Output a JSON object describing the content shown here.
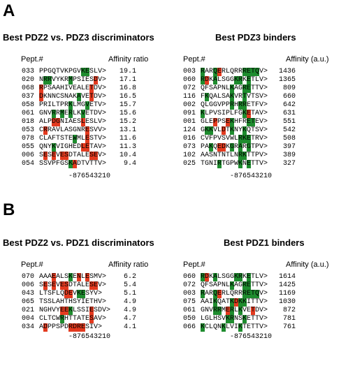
{
  "panel_a": {
    "letter": "A",
    "left": {
      "title": "Best PDZ2 vs. PDZ3 discriminators",
      "col_pept": "Pept.#",
      "col_val": "Affinity ratio",
      "positions": "-876543210",
      "rows": [
        {
          "id": "033",
          "seq": "PPGQTVKPGVKESLV>",
          "hl": "..........gg....",
          "val": "19.1"
        },
        {
          "id": "020",
          "seq": "NRRVYKRMPSIESDV>",
          "hl": ".gg....g.....r..",
          "val": "17.1"
        },
        {
          "id": "068",
          "seq": "RPSAAHIVEALETDV>",
          "hl": "r...........r...",
          "val": "16.8"
        },
        {
          "id": "037",
          "seq": "DKNNCSNAKAVETDV>",
          "hl": "r........g..r...",
          "val": "16.5"
        },
        {
          "id": "058",
          "seq": "PRILTPRKLMGVETV>",
          "hl": ".......g...g....",
          "val": "15.7"
        },
        {
          "id": "061",
          "seq": "GNVRRMERLKVETDV>",
          "hl": "...g.g.g..g.....",
          "val": "15.6"
        },
        {
          "id": "018",
          "seq": "ALPDGNIAESLESLV>",
          "hl": "...rr.....r.....",
          "val": "15.2"
        },
        {
          "id": "053",
          "seq": "CRRAVLASGNRESVV>",
          "hl": ".r.........r....",
          "val": "13.1"
        },
        {
          "id": "078",
          "seq": "CLAFTSTEWMLESTV>",
          "hl": "........g..r....",
          "val": "11.6"
        },
        {
          "id": "055",
          "qseq": "",
          "seq": "QNYKVIGHEDLETAV>",
          "hl": "...g......rr....",
          "val": "11.3"
        },
        {
          "id": "006",
          "seq": "SESEVESDTALESEV>",
          "hl": ".r.r.rr.....rr..",
          "val": "10.4"
        },
        {
          "id": "054",
          "seq": "SSVPFGSKADTVTTV>",
          "hl": ".......gr.......",
          "val": "9.4"
        }
      ]
    },
    "right": {
      "title": "Best PDZ3 binders",
      "col_pept": "Pept.#",
      "col_val": "Affinity (a.u.)",
      "positions": "-876543210",
      "rows": [
        {
          "id": "003",
          "seq": "RARQERLQRRRETQV>",
          "hl": "g..gr.....gggg..",
          "val": "1436"
        },
        {
          "id": "060",
          "seq": "RDKALSGGKRKETLV>",
          "hl": "gr.g....gg.g....",
          "val": "1365"
        },
        {
          "id": "072",
          "seq": "QFSAPNLKAGRETTV>",
          "hl": ".......g..gg....",
          "val": "809"
        },
        {
          "id": "116",
          "seq": "FKQALSAKVRTVTSV>",
          "hl": ".g.....g..g.....",
          "val": "660"
        },
        {
          "id": "002",
          "seq": "QLGGVPPRHRRETFV>",
          "hl": ".......g.gg.....",
          "val": "642"
        },
        {
          "id": "091",
          "seq": "KLPVSIPLFGKETAV>",
          "hl": "g.........gr....",
          "val": "631"
        },
        {
          "id": "001",
          "seq": "GLEPPSEKHFRETEV>",
          "hl": "...r..rg...gg...",
          "val": "551"
        },
        {
          "id": "124",
          "seq": "GKKVLDTKNYKQTSV>",
          "hl": ".gg..r.g..g.....",
          "val": "542"
        },
        {
          "id": "016",
          "seq": "CVFPVSVWLRKETRV>",
          "hl": ".........ggg....",
          "val": "508"
        },
        {
          "id": "073",
          "seq": "PAKQEDKGRARGTPV>",
          "hl": "..g.rr.g.g.g....",
          "val": "397"
        },
        {
          "id": "102",
          "seq": "AASNTNTLNRKTTPV>",
          "hl": ".........gg.....",
          "val": "389"
        },
        {
          "id": "025",
          "seq": "TGNIRTGPWKNETTV>",
          "hl": "....g....g.g....",
          "val": "327"
        }
      ]
    }
  },
  "panel_b": {
    "letter": "B",
    "left": {
      "title": "Best PDZ2 vs. PDZ1 discriminators",
      "col_pept": "Pept.#",
      "col_val": "Affinity ratio",
      "positions": "-876543210",
      "rows": [
        {
          "id": "070",
          "seq": "AAAEALSKENLESMV>",
          "hl": "...r...g.r.r....",
          "val": "6.2"
        },
        {
          "id": "006",
          "seq": "SESEVESDTALESEV>",
          "hl": ".r.r.rr.....rr..",
          "val": "5.4"
        },
        {
          "id": "043",
          "seq": "LTSFLQDEVKESYV>",
          "hl": "......rr.gg.....",
          "val": "5.1"
        },
        {
          "id": "065",
          "seq": "TSSLAHTHSYIETHV>",
          "hl": "................",
          "val": "4.9"
        },
        {
          "id": "021",
          "seq": "NGHVYEEKLSSIESDV>",
          "hl": ".....rrg....r...",
          "val": "4.9"
        },
        {
          "id": "004",
          "seq": "CLTCWRHTTATESAV>",
          "hl": ".....g......r...",
          "val": "4.7"
        },
        {
          "id": "034",
          "seq": "ADPPSPDRDRESIV>",
          "hl": ".r.....rrrr.....",
          "val": "4.1"
        }
      ]
    },
    "right": {
      "title": "Best PDZ1 binders",
      "col_pept": "Pept.#",
      "col_val": "Affinity (a.u.)",
      "positions": "-876543210",
      "rows": [
        {
          "id": "060",
          "seq": "RDKALSGGKRKETLV>",
          "hl": "gr.g....gg.g....",
          "val": "1614"
        },
        {
          "id": "072",
          "seq": "QFSAPNLKAGRETTV>",
          "hl": ".......g..gg....",
          "val": "1425"
        },
        {
          "id": "003",
          "seq": "RARQERLQRRRETQV>",
          "hl": "g..gr.....gggg..",
          "val": "1169"
        },
        {
          "id": "075",
          "seq": "AAIKQATKDKKITTV>",
          "hl": "...g...grgg.....",
          "val": "1030"
        },
        {
          "id": "061",
          "seq": "GNVRRMERLKVETDV>",
          "hl": "...gg.rg.g..r...",
          "val": "872"
        },
        {
          "id": "050",
          "seq": "LGLHSVKRNSKETTV>",
          "hl": "......gg..g.....",
          "val": "781"
        },
        {
          "id": "066",
          "seq": "KCLQNKLVIKTETTV>",
          "hl": "g....g...g......",
          "val": "761"
        }
      ]
    }
  }
}
